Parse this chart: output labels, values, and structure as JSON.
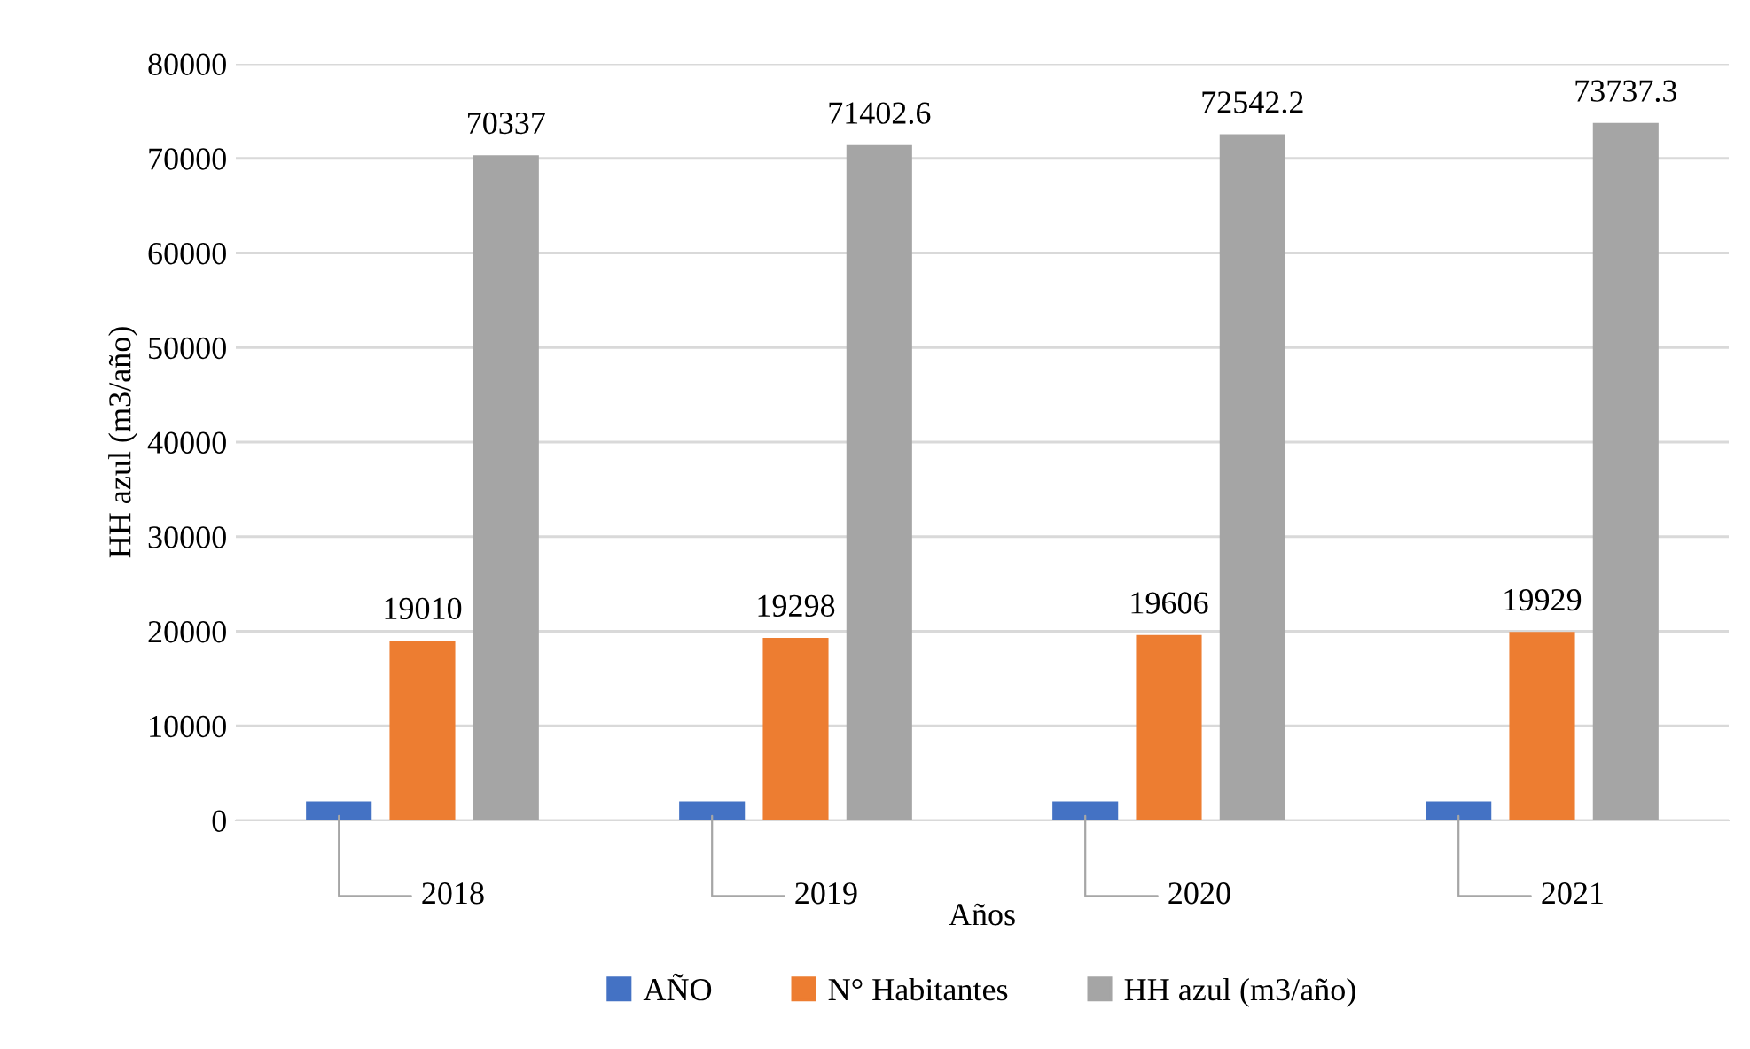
{
  "chart_data": {
    "type": "bar",
    "xlabel": "Años",
    "ylabel": "HH azul (m3/año)",
    "categories": [
      null,
      null,
      null,
      null
    ],
    "series": [
      {
        "name": "AÑO",
        "color": "#4472c4",
        "values": [
          2018,
          2019,
          2020,
          2021
        ]
      },
      {
        "name": "N° Habitantes",
        "color": "#ed7d31",
        "values": [
          19010,
          19298,
          19606,
          19929
        ]
      },
      {
        "name": "HH azul (m3/año)",
        "color": "#a5a5a5",
        "values": [
          70337,
          71402.6,
          72542.2,
          73737.3
        ]
      }
    ],
    "ylim": [
      0,
      80000
    ],
    "yticks": [
      0,
      10000,
      20000,
      30000,
      40000,
      50000,
      60000,
      70000,
      80000
    ],
    "grid": "y",
    "legend": "bottom",
    "data_labels": true
  }
}
